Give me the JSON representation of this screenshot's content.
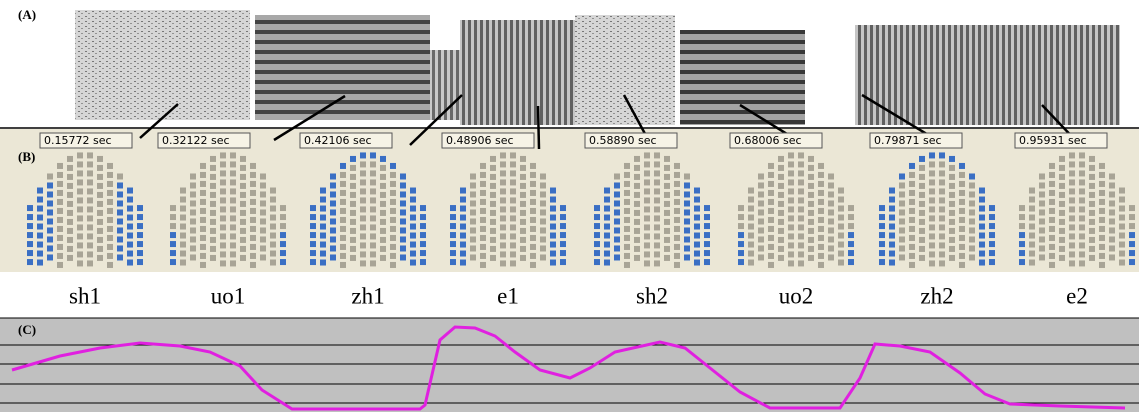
{
  "panels": {
    "a": "(A)",
    "b": "(B)",
    "c": "(C)"
  },
  "times": [
    "0.15772 sec",
    "0.32122 sec",
    "0.42106 sec",
    "0.48906 sec",
    "0.58890 sec",
    "0.68006 sec",
    "0.79871 sec",
    "0.95931 sec"
  ],
  "phonemes": [
    "sh1",
    "uo1",
    "zh1",
    "e1",
    "sh2",
    "uo2",
    "zh2",
    "e2"
  ]
}
